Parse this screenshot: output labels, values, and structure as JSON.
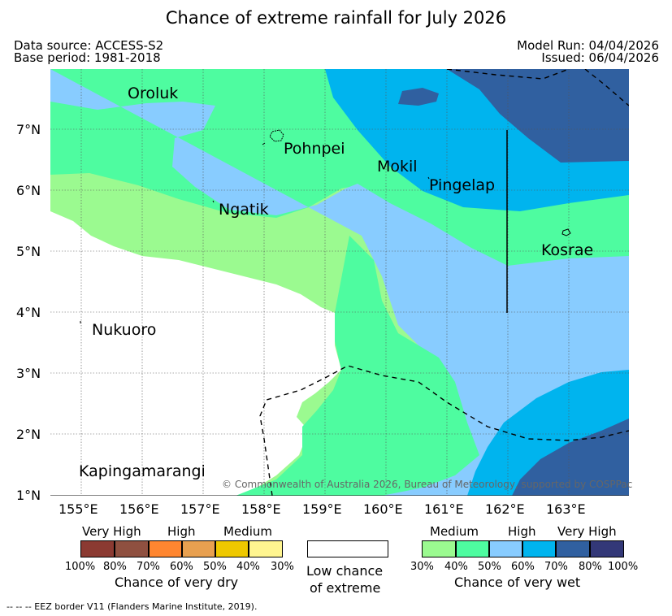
{
  "title": "Chance of extreme rainfall for July 2026",
  "data_source": "Data source: ACCESS-S2",
  "base_period": "Base period: 1981-2018",
  "model_run": "Model Run: 04/04/2026",
  "issued": "Issued: 06/04/2026",
  "lat_labels": [
    "1°N",
    "2°N",
    "3°N",
    "4°N",
    "5°N",
    "6°N",
    "7°N"
  ],
  "lon_labels": [
    "155°E",
    "156°E",
    "157°E",
    "158°E",
    "159°E",
    "160°E",
    "161°E",
    "162°E",
    "163°E"
  ],
  "places": {
    "oroluk": "Oroluk",
    "pohnpei": "Pohnpei",
    "mokil": "Mokil",
    "pingelap": "Pingelap",
    "ngatik": "Ngatik",
    "kosrae": "Kosrae",
    "nukuoro": "Nukuoro",
    "kapingamarangi": "Kapingamarangi"
  },
  "copyright": "© Commonwealth of Australia 2026, Bureau of Meteorology, supported by COSPPac",
  "legend": {
    "dry": {
      "headers": [
        "Very High",
        "High",
        "Medium"
      ],
      "ticks": [
        "100%",
        "80%",
        "70%",
        "60%",
        "50%",
        "40%",
        "30%"
      ],
      "caption": "Chance of very dry",
      "colors": [
        "#8b3a32",
        "#8f5040",
        "#ff8630",
        "#e8a050",
        "#eec800",
        "#fff590"
      ]
    },
    "low": {
      "line1": "Low chance",
      "line2": "of extreme",
      "color": "#ffffff"
    },
    "wet": {
      "headers": [
        "Medium",
        "High",
        "Very High"
      ],
      "ticks": [
        "30%",
        "40%",
        "50%",
        "60%",
        "70%",
        "80%",
        "100%"
      ],
      "caption": "Chance of very wet",
      "colors": [
        "#9bfa90",
        "#4efca0",
        "#88ccff",
        "#00b4ee",
        "#3060a0",
        "#333878"
      ]
    }
  },
  "footnote": "--  --  -- EEZ border V11 (Flanders Marine Institute, 2019)."
}
